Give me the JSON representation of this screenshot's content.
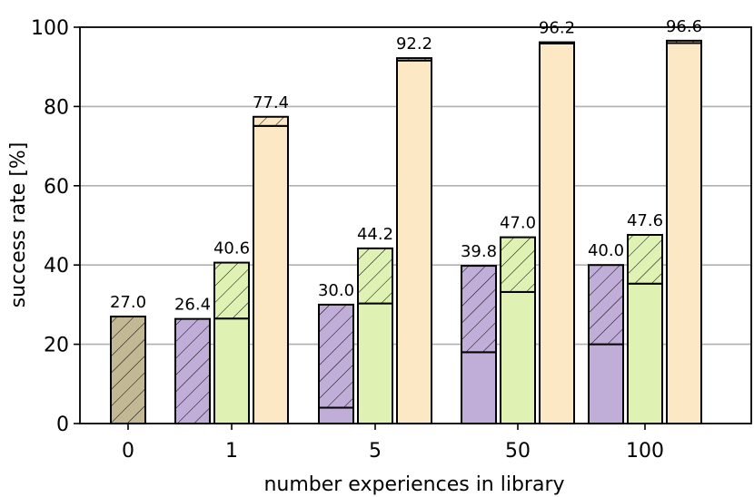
{
  "chart_data": {
    "type": "bar",
    "xlabel": "number experiences in library",
    "ylabel": "success rate [%]",
    "ylim": [
      0,
      100
    ],
    "yticks": [
      "0",
      "20",
      "40",
      "60",
      "80",
      "100"
    ],
    "grid": "horizontal",
    "categories": [
      "0",
      "1",
      "5",
      "50",
      "100"
    ],
    "colors": {
      "baseline": "#c2b894",
      "purple": "#c0aed8",
      "green": "#dff2b4",
      "orange": "#fde8c6"
    },
    "series": [
      {
        "values": [
          27.0,
          null,
          null,
          null,
          null
        ],
        "solid_values": [
          0,
          null,
          null,
          null,
          null
        ],
        "labels": [
          "27.0",
          null,
          null,
          null,
          null
        ],
        "color_key": "baseline"
      },
      {
        "values": [
          null,
          26.4,
          30.0,
          39.8,
          40.0
        ],
        "solid_values": [
          null,
          0,
          4,
          18,
          20
        ],
        "labels": [
          null,
          "26.4",
          "30.0",
          "39.8",
          "40.0"
        ],
        "color_key": "purple"
      },
      {
        "values": [
          null,
          40.6,
          44.2,
          47.0,
          47.6
        ],
        "solid_values": [
          null,
          26.5,
          30.3,
          33.2,
          35.3
        ],
        "labels": [
          null,
          "40.6",
          "44.2",
          "47.0",
          "47.6"
        ],
        "color_key": "green"
      },
      {
        "values": [
          null,
          77.4,
          92.2,
          96.2,
          96.6
        ],
        "solid_values": [
          null,
          75.1,
          91.6,
          95.9,
          96.0
        ],
        "labels": [
          null,
          "77.4",
          "92.2",
          "96.2",
          "96.6"
        ],
        "color_key": "orange"
      }
    ]
  }
}
